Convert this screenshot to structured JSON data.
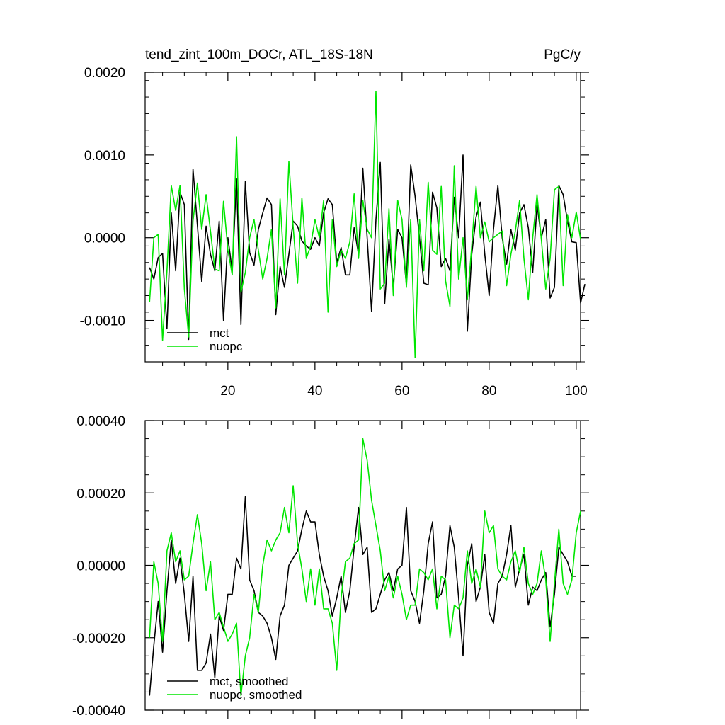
{
  "chart_data": [
    {
      "type": "line",
      "title": "tend_zint_100m_DOCr, ATL_18S-18N",
      "units": "PgC/y",
      "xlim": [
        1,
        101
      ],
      "ylim": [
        -0.0015,
        0.002
      ],
      "x_ticks": [
        20,
        40,
        60,
        80,
        100
      ],
      "x_tick_labels": [
        "20",
        "40",
        "60",
        "80",
        "100"
      ],
      "y_ticks": [
        -0.001,
        0,
        0.001,
        0.002
      ],
      "y_tick_labels": [
        "-0.0010",
        "0.0000",
        "0.0010",
        "0.0020"
      ],
      "x_start": 2,
      "legend_position": "bottom-left",
      "series": [
        {
          "name": "mct",
          "color": "#000000",
          "values": [
            -0.00036,
            -0.0005,
            -0.00024,
            -0.00019,
            -0.0011,
            0.0003,
            -0.0004,
            0.00055,
            0.0004,
            -0.00123,
            0.00083,
            0.00015,
            -0.00053,
            0.00014,
            -0.0002,
            -0.0004,
            0.0002,
            -0.001,
            0.0,
            -0.0004,
            0.00071,
            -0.00105,
            0.00068,
            -0.00018,
            -0.00033,
            0.0001,
            0.0003,
            0.00048,
            0.0004,
            -0.00093,
            -0.00035,
            -0.0006,
            -0.0002,
            0.0002,
            0.00014,
            -4e-05,
            -0.0001,
            -0.00014,
            0.0,
            -0.0001,
            0.0003,
            0.00047,
            0.0004,
            -0.0003,
            -0.00012,
            -0.00045,
            -0.00045,
            0.00012,
            -0.0002,
            0.00084,
            0.0,
            -0.00089,
            0.00022,
            0.00091,
            -0.0008,
            -2e-05,
            -0.0006,
            0.0001,
            0.0,
            -0.00057,
            0.00088,
            0.0005,
            0.0,
            -0.00055,
            -0.00057,
            0.00055,
            0.00036,
            -0.00035,
            -0.00025,
            -0.0004,
            0.00049,
            0.0,
            0.001,
            -0.00113,
            -0.0002,
            0.00025,
            0.00043,
            -0.0002,
            -0.0007,
            0.0001,
            0.00063,
            0.0,
            -0.00032,
            0.0001,
            -0.00015,
            0.0003,
            0.0004,
            0.00012,
            -0.00042,
            0.0004,
            0.0,
            0.00022,
            -0.00073,
            -0.0006,
            0.00063,
            0.00052,
            0.0002,
            -5e-05,
            -6e-05,
            -0.00079,
            -0.00056
          ]
        },
        {
          "name": "nuopc",
          "color": "#00e600",
          "values": [
            -0.00078,
            0.0,
            4e-05,
            -0.00124,
            -0.0004,
            0.00063,
            0.00033,
            0.00063,
            -0.00062,
            -0.0012,
            0.0002,
            0.00066,
            0.0001,
            0.00052,
            8e-05,
            -0.00038,
            -0.0004,
            0.00044,
            -0.00015,
            -0.00045,
            0.00122,
            -0.00066,
            -0.00042,
            0.0,
            0.00022,
            -0.00015,
            -0.0005,
            -0.00025,
            0.0001,
            -0.00085,
            0.00047,
            -0.00045,
            0.00092,
            0.00013,
            -0.00055,
            0.00048,
            -0.00025,
            -0.0001,
            0.00022,
            0.0,
            0.00045,
            -0.0009,
            0.00022,
            -0.00035,
            -0.00015,
            -0.00025,
            -5e-05,
            0.00053,
            -0.00025,
            0.00045,
            0.0001,
            0.0,
            0.00177,
            -0.00062,
            -0.00055,
            0.00035,
            -0.0007,
            0.00045,
            0.00022,
            -0.0006,
            0.00022,
            -0.00145,
            0.00022,
            -0.0004,
            0.00067,
            -0.00015,
            -0.0002,
            0.00062,
            -0.00052,
            -0.00083,
            0.00087,
            -0.0005,
            0.0,
            -0.00075,
            -0.0001,
            0.00062,
            0.0,
            0.00019,
            -5e-05,
            0.0,
            4e-05,
            8e-05,
            -0.00058,
            -0.0002,
            8e-05,
            0.00045,
            -0.00025,
            -0.00075,
            0.0,
            0.00052,
            -2e-05,
            -0.00062,
            -0.00025,
            0.00058,
            0.00062,
            -0.00058,
            0.00028,
            0.0,
            0.00031,
            -2e-05
          ]
        }
      ]
    },
    {
      "type": "line",
      "title": "",
      "xlim": [
        1,
        101
      ],
      "ylim": [
        -0.0004,
        0.0004
      ],
      "x_ticks": [
        20,
        40,
        60,
        80,
        100
      ],
      "x_tick_labels": [],
      "y_ticks": [
        -0.0004,
        -0.0002,
        0,
        0.0002,
        0.0004
      ],
      "y_tick_labels": [
        "-0.00040",
        "-0.00020",
        "0.00000",
        "0.00020",
        "0.00040"
      ],
      "x_start": 2,
      "legend_position": "bottom-left",
      "series": [
        {
          "name": "mct, smoothed",
          "color": "#000000",
          "values": [
            -0.00036,
            -0.00022,
            -0.0001,
            -0.00024,
            -7e-05,
            7e-05,
            -5e-05,
            2e-05,
            -8e-05,
            -0.00021,
            -3e-05,
            -0.00029,
            -0.00029,
            -0.00027,
            -0.00019,
            -0.00031,
            -0.00014,
            -0.00018,
            -8e-05,
            -8e-05,
            2e-05,
            -1e-05,
            0.00019,
            -4e-05,
            -7e-05,
            -0.00013,
            -0.00014,
            -0.00016,
            -0.0002,
            -0.00026,
            -0.00014,
            -0.00011,
            0.0,
            2e-05,
            4e-05,
            0.0001,
            0.00015,
            0.00012,
            0.00012,
            3e-05,
            -3e-05,
            -7e-05,
            -0.00014,
            -9e-05,
            -3e-05,
            -0.00013,
            -7e-05,
            5e-05,
            0.00016,
            3e-05,
            5e-05,
            -0.00013,
            -0.00012,
            -8e-05,
            -4e-05,
            -2e-05,
            -7e-05,
            -1e-05,
            0.0,
            0.00016,
            -7e-05,
            -0.0001,
            -0.00016,
            -7e-05,
            6e-05,
            0.00012,
            -9e-05,
            -8e-05,
            -3e-05,
            0.00011,
            5e-05,
            -9e-05,
            -0.00025,
            0.0,
            6e-05,
            -0.0001,
            -6e-05,
            3e-05,
            -0.00013,
            -0.00016,
            -5e-05,
            -3e-05,
            3e-05,
            0.00011,
            -6e-05,
            -1e-05,
            3e-05,
            -0.00011,
            -6e-05,
            -7e-05,
            -4e-05,
            -2e-05,
            -0.00017,
            -8e-05,
            5e-05,
            3e-05,
            1e-05,
            -3e-05,
            -3e-05
          ]
        },
        {
          "name": "nuopc, smoothed",
          "color": "#00e600",
          "values": [
            -0.0002,
            1e-05,
            -5e-05,
            -0.00021,
            4e-05,
            9e-05,
            1e-05,
            4e-05,
            -4e-05,
            -3e-05,
            6e-05,
            0.00014,
            6e-05,
            -7e-05,
            1e-05,
            -0.00015,
            -0.00013,
            -0.00017,
            -0.00021,
            -0.00019,
            -0.00016,
            -0.00036,
            -0.00025,
            -0.0002,
            -8e-05,
            -0.00013,
            0.0,
            7e-05,
            4e-05,
            7e-05,
            9e-05,
            0.00016,
            9e-05,
            0.00022,
            6e-05,
            -1e-05,
            -0.0001,
            -1e-05,
            -0.00011,
            -1e-05,
            -0.00012,
            -0.00012,
            -0.00016,
            -0.00029,
            -9e-05,
            1e-05,
            2e-05,
            6e-05,
            7e-05,
            0.00035,
            0.00029,
            0.00018,
            0.00011,
            4e-05,
            -7e-05,
            -3e-05,
            -9e-05,
            -3e-05,
            -8e-05,
            -0.00015,
            -0.00011,
            -0.00011,
            -1e-05,
            -2e-05,
            -4e-05,
            -1e-05,
            -0.00012,
            -3e-05,
            -4e-05,
            -0.0002,
            -0.00011,
            -0.00012,
            -9e-05,
            4e-05,
            -5e-05,
            -1e-05,
            -6e-05,
            0.00015,
            9e-05,
            0.00011,
            -1e-05,
            -3e-05,
            -4e-05,
            1e-05,
            4e-05,
            -2e-05,
            5e-05,
            -5e-05,
            -8e-05,
            -5e-05,
            4e-05,
            -4e-05,
            -0.00021,
            -5e-05,
            0.0001,
            -5e-05,
            -8e-05,
            -4e-05,
            9e-05,
            0.00015
          ]
        }
      ]
    }
  ]
}
